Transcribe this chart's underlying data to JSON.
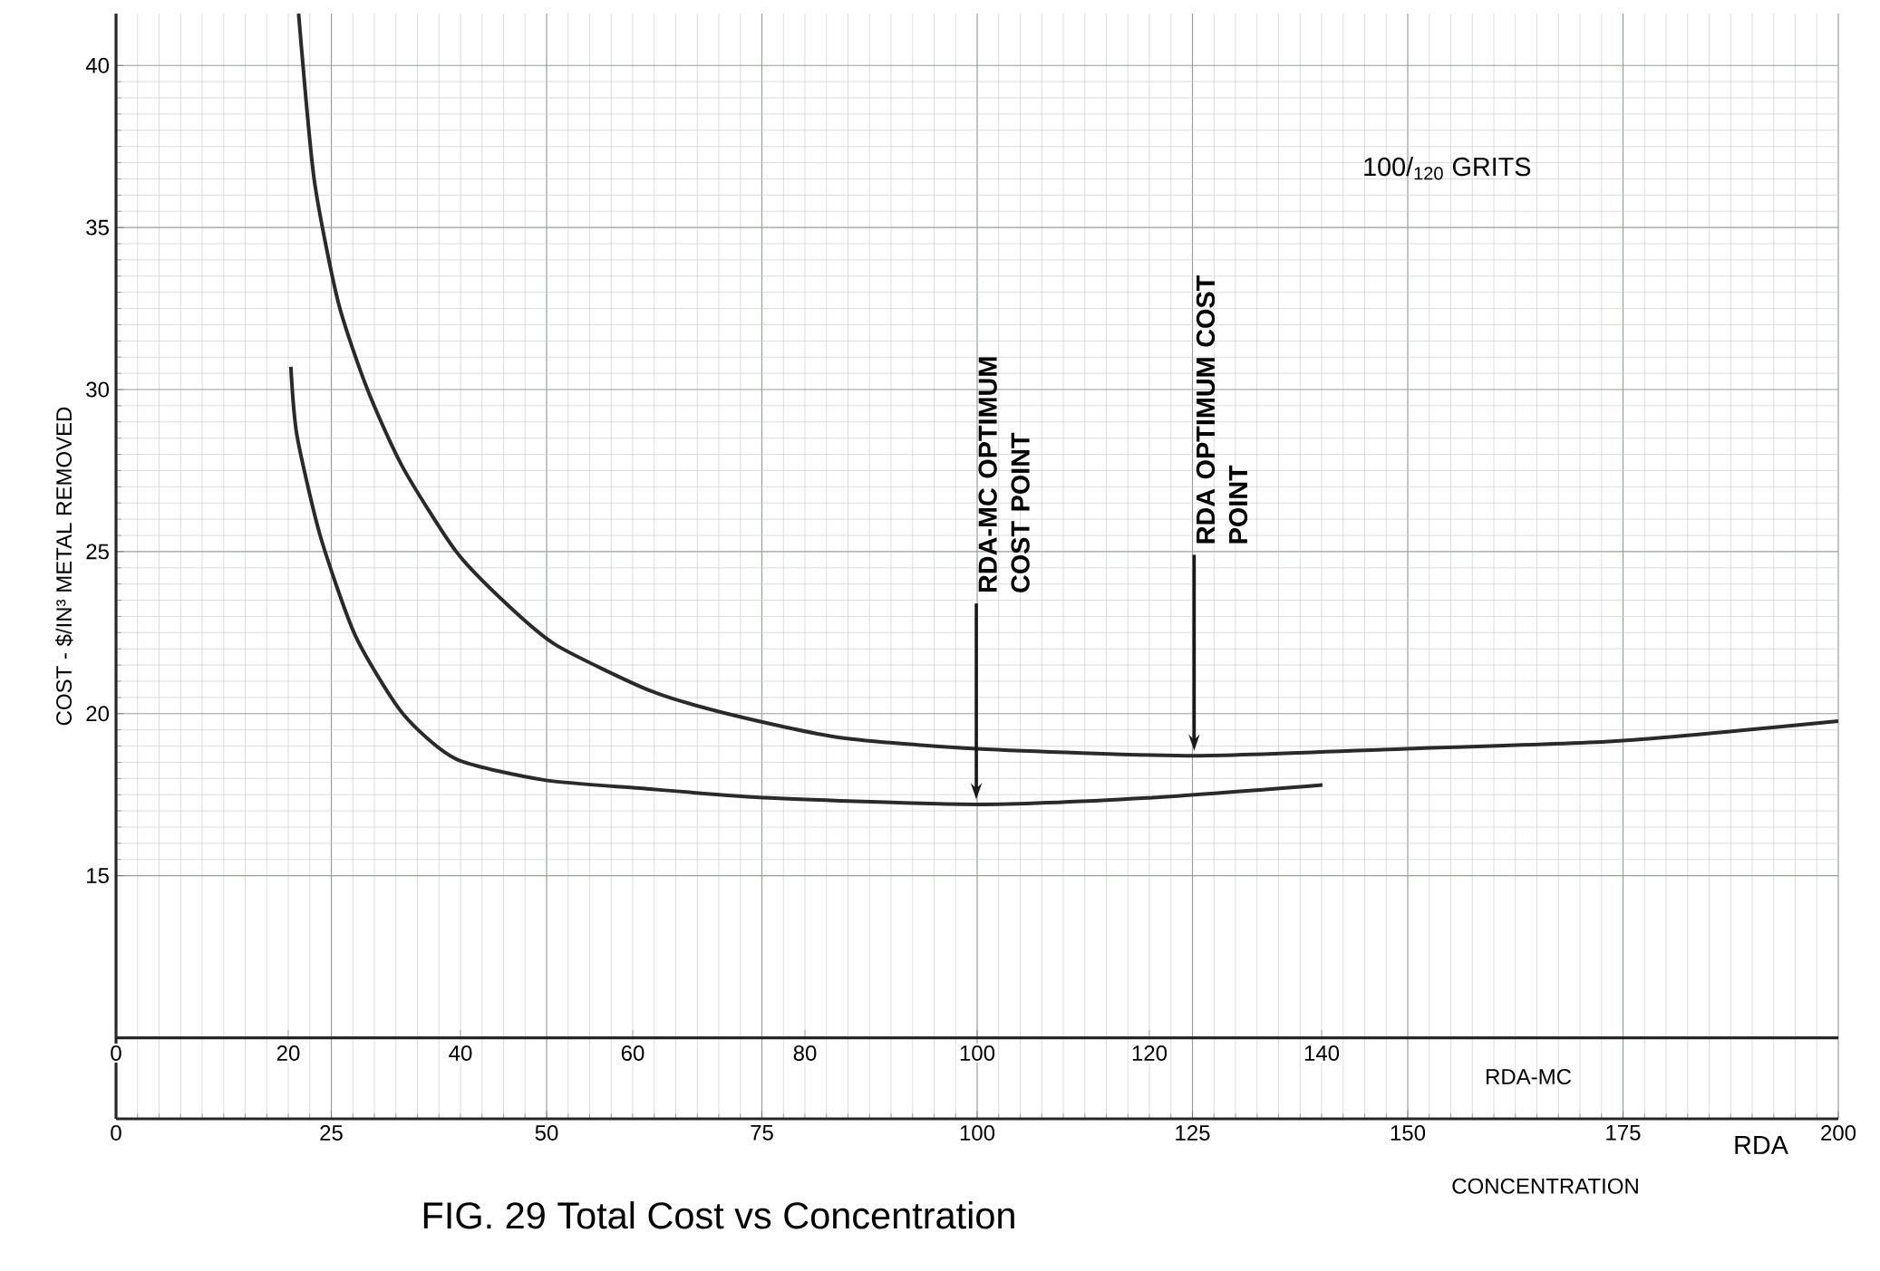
{
  "chart_data": {
    "type": "line",
    "title": "FIG. 29 Total Cost vs Concentration",
    "xlabel": "CONCENTRATION",
    "ylabel": "COST - $/IN³ METAL REMOVED",
    "x2label": "RDA-MC",
    "xlim": [
      0,
      200
    ],
    "xticks": [
      0,
      25,
      50,
      75,
      100,
      125,
      150,
      175,
      200
    ],
    "x2lim": [
      0,
      200
    ],
    "x2ticks": [
      0,
      20,
      40,
      60,
      80,
      100,
      120,
      140
    ],
    "ylim": [
      7.5,
      41.6
    ],
    "yticks": [
      15,
      20,
      25,
      30,
      35,
      40
    ],
    "grid": true,
    "series": [
      {
        "color": "#2a2a2a",
        "x": [
          21.2,
          23.0,
          25.8,
          29.2,
          33.3,
          39.5,
          45.7,
          51.2,
          62.1,
          71.7,
          84.1,
          99.9,
          125.2,
          149.9,
          174.6,
          200
        ],
        "values": [
          41.6,
          36.5,
          32.7,
          30.0,
          27.6,
          25.0,
          23.3,
          22.1,
          20.7,
          19.95,
          19.26,
          18.92,
          18.7,
          18.92,
          19.16,
          19.77
        ]
      },
      {
        "color": "#2a2a2a",
        "x": [
          20.3,
          21.0,
          23.7,
          27.8,
          33.3,
          39.5,
          49.8,
          60.8,
          75.9,
          99.9,
          119.8,
          140.1
        ],
        "values": [
          30.7,
          28.6,
          25.5,
          22.4,
          20.0,
          18.6,
          17.95,
          17.7,
          17.4,
          17.2,
          17.4,
          17.8
        ]
      }
    ],
    "annotations": [
      "100/$_{120}$ GRITS",
      "RDA-MC OPTIMUM COST POINT",
      "RDA OPTIMUM COST POINT",
      "RDA"
    ]
  }
}
